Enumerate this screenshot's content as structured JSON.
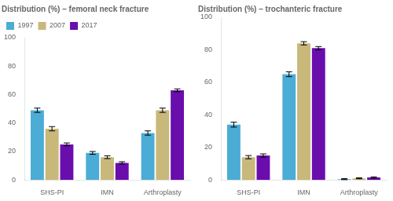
{
  "chart_data": [
    {
      "type": "bar",
      "title": "Distribution (%) – femoral neck fracture",
      "categories": [
        "SHS-PI",
        "IMN",
        "Arthroplasty"
      ],
      "series": [
        {
          "name": "1997",
          "color": "#4bacd6",
          "values": [
            49,
            19,
            33
          ],
          "errors": [
            1.5,
            1.0,
            1.5
          ]
        },
        {
          "name": "2007",
          "color": "#c8b87a",
          "values": [
            36,
            16,
            49
          ],
          "errors": [
            1.5,
            1.0,
            1.5
          ]
        },
        {
          "name": "2017",
          "color": "#6a0dad",
          "values": [
            25,
            12,
            63
          ],
          "errors": [
            1.0,
            0.8,
            1.0
          ]
        }
      ],
      "ylim": [
        0,
        100
      ],
      "yticks": [
        0,
        20,
        40,
        60,
        80,
        100
      ],
      "grid": false,
      "legend": "upper left"
    },
    {
      "type": "bar",
      "title": "Distribution (%) – trochanteric fracture",
      "categories": [
        "SHS-PI",
        "IMN",
        "Arthroplasty"
      ],
      "series": [
        {
          "name": "1997",
          "color": "#4bacd6",
          "values": [
            34,
            65,
            0.5
          ],
          "errors": [
            1.5,
            1.5,
            0.3
          ]
        },
        {
          "name": "2007",
          "color": "#c8b87a",
          "values": [
            14,
            84,
            1.0
          ],
          "errors": [
            1.0,
            1.0,
            0.3
          ]
        },
        {
          "name": "2017",
          "color": "#6a0dad",
          "values": [
            15,
            81,
            1.5
          ],
          "errors": [
            1.0,
            1.0,
            0.4
          ]
        }
      ],
      "ylim": [
        0,
        100
      ],
      "yticks": [
        0,
        20,
        40,
        60,
        80,
        100
      ],
      "grid": false
    }
  ]
}
